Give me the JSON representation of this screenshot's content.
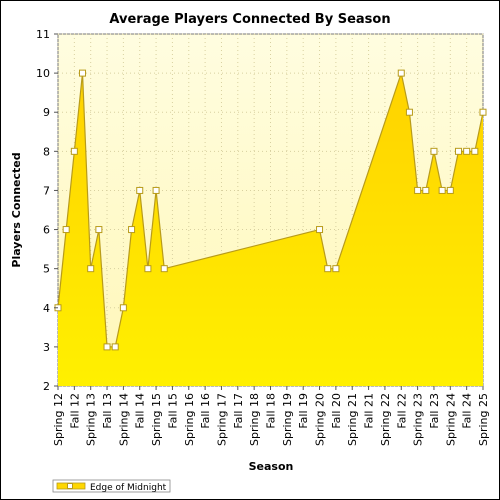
{
  "chart_data": {
    "type": "area",
    "title": "Average Players Connected By Season",
    "xlabel": "Season",
    "ylabel": "Players Connected",
    "ylim": [
      2,
      11
    ],
    "yticks": [
      2,
      3,
      4,
      5,
      6,
      7,
      8,
      9,
      10,
      11
    ],
    "grid": true,
    "legend_position": "bottom-left",
    "colors": {
      "fill": "#ffd700",
      "line": "#b89b1a",
      "marker_fill": "#ffffff",
      "plot_bg": "#fffde0"
    },
    "categories": [
      "Spring 12",
      "Fall 12",
      "Spring 13",
      "Fall 13",
      "Spring 14",
      "Fall 14",
      "Spring 15",
      "Fall 15",
      "Spring 16",
      "Fall 16",
      "Spring 17",
      "Fall 17",
      "Spring 18",
      "Fall 18",
      "Spring 19",
      "Fall 19",
      "Spring 20",
      "Fall 20",
      "Spring 21",
      "Fall 21",
      "Spring 22",
      "Fall 22",
      "Spring 23",
      "Fall 23",
      "Spring 24",
      "Fall 24",
      "Spring 25"
    ],
    "series": [
      {
        "name": "Edge of Midnight",
        "points": [
          {
            "x": 0.0,
            "y": 4
          },
          {
            "x": 0.5,
            "y": 6
          },
          {
            "x": 1.0,
            "y": 8
          },
          {
            "x": 1.5,
            "y": 10
          },
          {
            "x": 2.0,
            "y": 5
          },
          {
            "x": 2.5,
            "y": 6
          },
          {
            "x": 3.0,
            "y": 3
          },
          {
            "x": 3.5,
            "y": 3
          },
          {
            "x": 4.0,
            "y": 4
          },
          {
            "x": 4.5,
            "y": 6
          },
          {
            "x": 5.0,
            "y": 7
          },
          {
            "x": 5.5,
            "y": 5
          },
          {
            "x": 6.0,
            "y": 7
          },
          {
            "x": 6.5,
            "y": 5
          },
          {
            "x": 16.0,
            "y": 6
          },
          {
            "x": 16.5,
            "y": 5
          },
          {
            "x": 17.0,
            "y": 5
          },
          {
            "x": 21.0,
            "y": 10
          },
          {
            "x": 21.5,
            "y": 9
          },
          {
            "x": 22.0,
            "y": 7
          },
          {
            "x": 22.5,
            "y": 7
          },
          {
            "x": 23.0,
            "y": 8
          },
          {
            "x": 23.5,
            "y": 7
          },
          {
            "x": 24.0,
            "y": 7
          },
          {
            "x": 24.5,
            "y": 8
          },
          {
            "x": 25.0,
            "y": 8
          },
          {
            "x": 25.5,
            "y": 8
          },
          {
            "x": 26.0,
            "y": 9
          }
        ]
      }
    ]
  }
}
